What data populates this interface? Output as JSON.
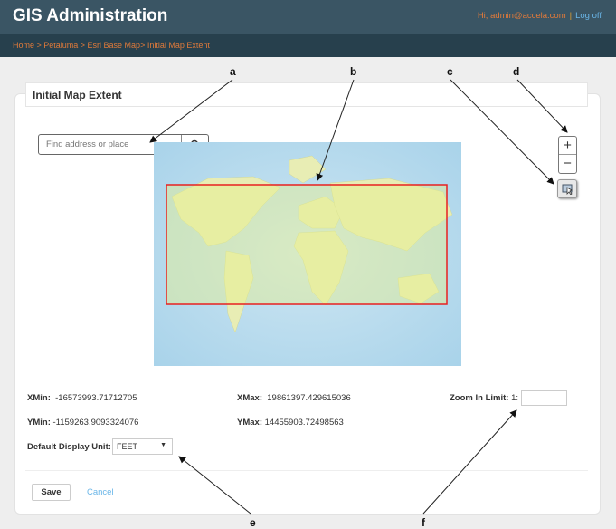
{
  "header": {
    "title": "GIS Administration",
    "greeting": "Hi, admin@accela.com",
    "separator": "|",
    "logoff": "Log off"
  },
  "breadcrumb": "Home > Petaluma > Esri Base Map> Initial Map Extent",
  "panel": {
    "title": "Initial Map Extent"
  },
  "search": {
    "placeholder": "Find address or place",
    "value": ""
  },
  "map_controls": {
    "zoom_in": "+",
    "zoom_out": "−"
  },
  "extent": {
    "xmin_label": "XMin:",
    "xmin": "-16573993.71712705",
    "xmax_label": "XMax:",
    "xmax": "19861397.429615036",
    "ymin_label": "YMin:",
    "ymin": "-1159263.9093324076",
    "ymax_label": "YMax:",
    "ymax": "14455903.72498563",
    "zoom_label": "Zoom In Limit:",
    "zoom_prefix": "1:",
    "zoom_value": ""
  },
  "unit": {
    "label": "Default Display Unit:",
    "value": "FEET"
  },
  "actions": {
    "save": "Save",
    "cancel": "Cancel"
  },
  "callouts": {
    "a": "a",
    "b": "b",
    "c": "c",
    "d": "d",
    "e": "e",
    "f": "f"
  },
  "colors": {
    "header": "#3a5564",
    "breadcrumb_bg": "#27404d",
    "accent": "#e07a3a",
    "link": "#6ab6e8",
    "extent": "#e82020"
  }
}
